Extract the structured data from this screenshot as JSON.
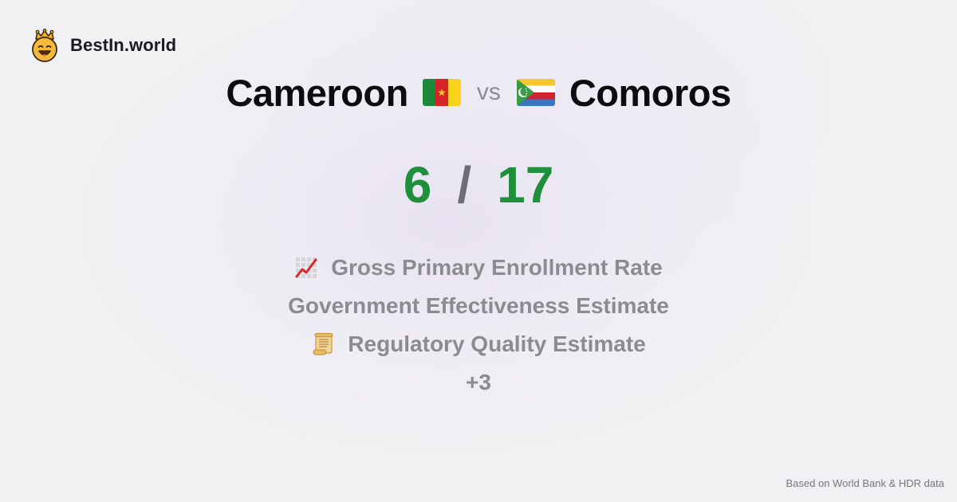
{
  "brand": {
    "name": "BestIn.world",
    "logo_icon": "crowned-smiley-icon"
  },
  "comparison": {
    "left": {
      "country": "Cameroon",
      "flag_icon": "cameroon-flag-icon",
      "score": "6"
    },
    "separator": "vs",
    "right": {
      "country": "Comoros",
      "flag_icon": "comoros-flag-icon",
      "score": "17"
    },
    "score_separator": "/"
  },
  "metrics": [
    {
      "label": "Gross Primary Enrollment Rate",
      "icon": "chart-increasing-icon"
    },
    {
      "label": "Government Effectiveness Estimate",
      "icon": ""
    },
    {
      "label": "Regulatory Quality Estimate",
      "icon": "scroll-icon"
    }
  ],
  "more_label": "+3",
  "footer": {
    "source": "Based on World Bank & HDR data"
  },
  "colors": {
    "score_green": "#1f8f3c",
    "muted_text": "#8b8b90",
    "title_text": "#0d0d10",
    "background": "#f1f1f3"
  }
}
